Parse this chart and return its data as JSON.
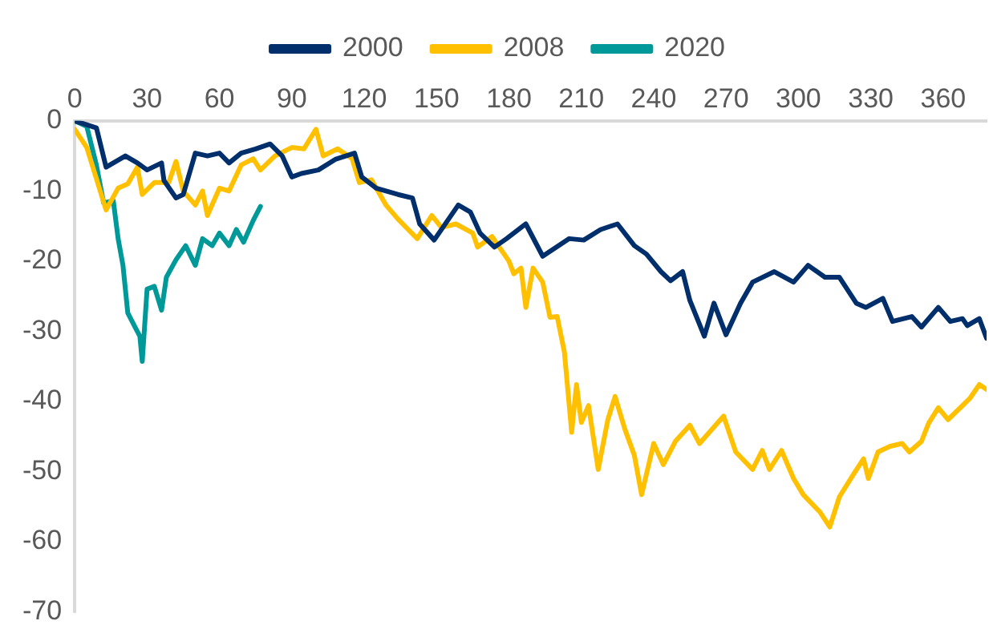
{
  "chart_data": {
    "type": "line",
    "xlim": [
      0,
      378
    ],
    "xticks": [
      0,
      30,
      60,
      90,
      120,
      150,
      180,
      210,
      240,
      270,
      300,
      330,
      360
    ],
    "ylim": [
      -70,
      0
    ],
    "yticks": [
      -70,
      -60,
      -50,
      -40,
      -30,
      -20,
      -10,
      0
    ],
    "grid": false,
    "legend": "top",
    "marker": "none",
    "line_style": "solid",
    "series": [
      {
        "name": "2000",
        "color": "#002f6c",
        "x": [
          0,
          9,
          13,
          16,
          21,
          26,
          30,
          36,
          37,
          42,
          45,
          50,
          55,
          60,
          64,
          69,
          75,
          81,
          86,
          90,
          94,
          101,
          108,
          116,
          119,
          125,
          134,
          140,
          143,
          149,
          159,
          164,
          168,
          174,
          179,
          187,
          194,
          205,
          211,
          218,
          225,
          232,
          237,
          243,
          247,
          252,
          255,
          261,
          265,
          270,
          276,
          281,
          290,
          298,
          304,
          311,
          317,
          324,
          328,
          335,
          339,
          347,
          351,
          358,
          363,
          368,
          370,
          375,
          378
        ],
        "values": [
          0,
          -1,
          -6.6,
          -6,
          -5,
          -6,
          -7,
          -6,
          -8.5,
          -11,
          -10.5,
          -4.6,
          -5,
          -4.6,
          -6,
          -4.6,
          -4,
          -3.3,
          -5,
          -8,
          -7.5,
          -7,
          -5.5,
          -4.6,
          -8,
          -9.6,
          -10.5,
          -11,
          -14.7,
          -17,
          -12,
          -13,
          -16,
          -18,
          -16.8,
          -14.7,
          -19.3,
          -16.8,
          -17,
          -15.5,
          -14.7,
          -17.8,
          -19,
          -21.5,
          -22.8,
          -21.5,
          -25.6,
          -30.7,
          -26,
          -30.5,
          -26,
          -23,
          -21.5,
          -23,
          -20.6,
          -22.3,
          -22.3,
          -26,
          -26.6,
          -25.3,
          -28.6,
          -27.9,
          -29.4,
          -26.6,
          -28.6,
          -28.2,
          -29.2,
          -28.2,
          -31
        ]
      },
      {
        "name": "2008",
        "color": "#ffc000",
        "x": [
          0,
          5,
          13,
          18,
          22,
          26,
          28,
          33,
          39,
          42,
          45,
          50,
          53,
          55,
          60,
          64,
          69,
          74,
          77,
          83,
          90,
          95,
          100,
          103,
          109,
          115,
          118,
          123,
          129,
          134,
          142,
          148,
          152,
          158,
          165,
          167,
          173,
          180,
          182,
          185,
          187,
          190,
          194,
          197,
          200,
          203,
          206,
          208,
          210,
          213,
          217,
          221,
          224,
          228,
          232,
          235,
          240,
          244,
          249,
          255,
          259,
          269,
          274,
          281,
          285,
          288,
          293,
          298,
          302,
          309,
          313,
          317,
          323,
          327,
          329,
          333,
          338,
          343,
          346,
          351,
          354,
          358,
          362,
          368,
          371,
          375,
          378
        ],
        "values": [
          -1.2,
          -3.8,
          -12.7,
          -9.6,
          -9,
          -6.6,
          -10.5,
          -8.8,
          -8.8,
          -5.8,
          -10,
          -12,
          -10,
          -13.5,
          -9.6,
          -10,
          -6.3,
          -5.4,
          -7,
          -5,
          -3.8,
          -4,
          -1.2,
          -5,
          -4,
          -5.4,
          -8.8,
          -8.4,
          -12,
          -14,
          -16.8,
          -13.5,
          -15.2,
          -14.7,
          -16,
          -18,
          -16.5,
          -20,
          -21.8,
          -21,
          -26.6,
          -21,
          -23,
          -28,
          -27.9,
          -33,
          -44.4,
          -37.6,
          -43,
          -40.6,
          -49.7,
          -42.6,
          -39.3,
          -43.9,
          -47.7,
          -53.3,
          -46,
          -49,
          -45.7,
          -43.4,
          -46,
          -42.1,
          -47.2,
          -49.7,
          -47,
          -49.7,
          -47,
          -51,
          -53.3,
          -55.8,
          -57.9,
          -53.6,
          -50.3,
          -48.2,
          -51,
          -47.2,
          -46.4,
          -46,
          -47.2,
          -45.7,
          -43.1,
          -40.9,
          -42.6,
          -40.6,
          -39.6,
          -37.6,
          -38.3
        ]
      },
      {
        "name": "2020",
        "color": "#009999",
        "x": [
          0,
          5,
          9,
          12,
          16,
          18,
          20,
          22,
          25,
          27,
          28,
          30,
          33,
          36,
          38,
          42,
          46,
          50,
          53,
          57,
          60,
          64,
          67,
          70,
          74,
          77
        ],
        "values": [
          0,
          -0.8,
          -6.3,
          -11.7,
          -11.4,
          -16.8,
          -20.6,
          -27.4,
          -29.4,
          -30.7,
          -34.3,
          -24,
          -23.6,
          -27,
          -22.3,
          -19.8,
          -17.8,
          -20.6,
          -16.8,
          -17.8,
          -16,
          -17.8,
          -15.5,
          -17.3,
          -14.2,
          -12.2
        ]
      }
    ]
  }
}
